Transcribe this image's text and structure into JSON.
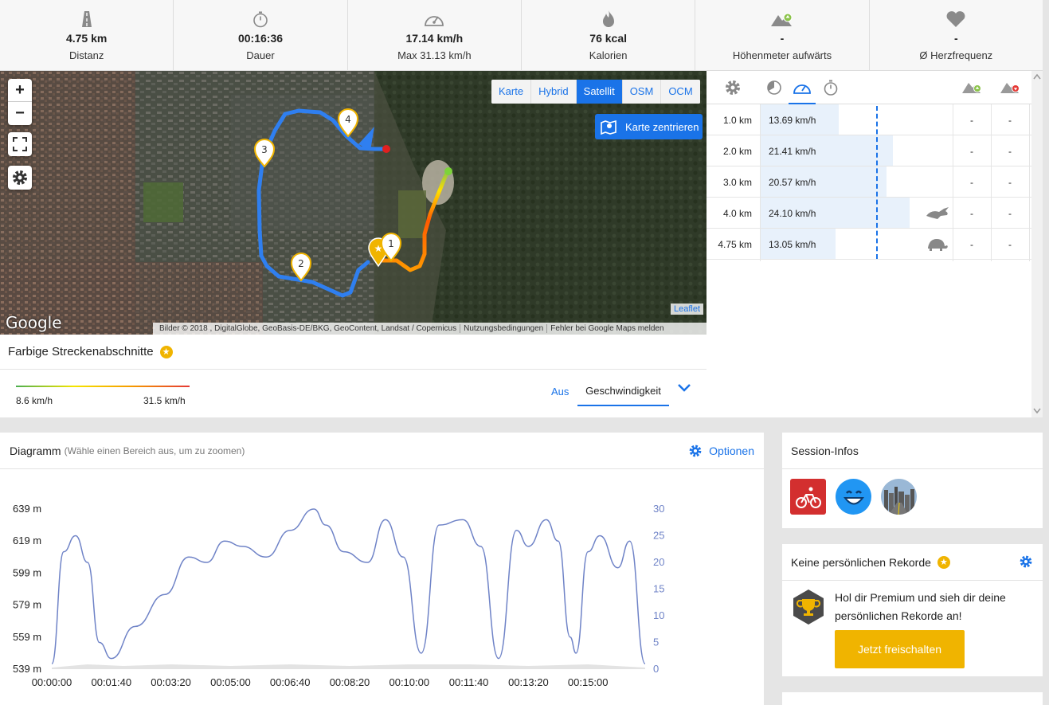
{
  "stats": [
    {
      "icon": "road-icon",
      "value": "4.75 km",
      "label": "Distanz"
    },
    {
      "icon": "stopwatch-icon",
      "value": "00:16:36",
      "label": "Dauer"
    },
    {
      "icon": "speedometer-icon",
      "value": "17.14 km/h",
      "label": "Max 31.13 km/h"
    },
    {
      "icon": "flame-icon",
      "value": "76 kcal",
      "label": "Kalorien"
    },
    {
      "icon": "mountain-up-icon",
      "value": "-",
      "label": "Höhenmeter aufwärts"
    },
    {
      "icon": "heart-icon",
      "value": "-",
      "label": "Ø Herzfrequenz"
    }
  ],
  "map": {
    "zoom_in": "+",
    "zoom_out": "−",
    "layers": [
      "Karte",
      "Hybrid",
      "Satellit",
      "OSM",
      "OCM"
    ],
    "active_layer": "Satellit",
    "center_label": "Karte zentrieren",
    "google": "Google",
    "attribution": [
      "Bilder © 2018 , DigitalGlobe, GeoBasis-DE/BKG, GeoContent, Landsat / Copernicus",
      "Nutzungsbedingungen",
      "Fehler bei Google Maps melden"
    ],
    "leaflet": "Leaflet",
    "markers": [
      "1",
      "2",
      "3",
      "4"
    ]
  },
  "sections": {
    "title": "Farbige Streckenabschnitte",
    "min": "8.6 km/h",
    "max": "31.5 km/h",
    "option_off": "Aus",
    "option_selected": "Geschwindigkeit"
  },
  "splits": [
    {
      "km": "1.0 km",
      "speed": "13.69 km/h",
      "fill": 0.41,
      "up": "-",
      "down": "-",
      "badge": ""
    },
    {
      "km": "2.0 km",
      "speed": "21.41 km/h",
      "fill": 0.69,
      "up": "-",
      "down": "-",
      "badge": ""
    },
    {
      "km": "3.0 km",
      "speed": "20.57 km/h",
      "fill": 0.66,
      "up": "-",
      "down": "-",
      "badge": ""
    },
    {
      "km": "4.0 km",
      "speed": "24.10 km/h",
      "fill": 0.78,
      "up": "-",
      "down": "-",
      "badge": "rabbit-icon"
    },
    {
      "km": "4.75 km",
      "speed": "13.05 km/h",
      "fill": 0.39,
      "up": "-",
      "down": "-",
      "badge": "turtle-icon"
    }
  ],
  "diagram": {
    "title": "Diagramm",
    "subtitle": "(Wähle einen Bereich aus, um zu zoomen)",
    "options": "Optionen"
  },
  "chart_data": {
    "type": "line",
    "title": "",
    "xlabel": "",
    "ylabel": "",
    "x_ticks": [
      "00:00:00",
      "00:01:40",
      "00:03:20",
      "00:05:00",
      "00:06:40",
      "00:08:20",
      "00:10:00",
      "00:11:40",
      "00:13:20",
      "00:15:00"
    ],
    "y_left_ticks": [
      "539 m",
      "559 m",
      "579 m",
      "599 m",
      "619 m",
      "639 m"
    ],
    "y_left_range": [
      539,
      639
    ],
    "y_right_ticks": [
      "0",
      "5",
      "10",
      "15",
      "20",
      "25",
      "30"
    ],
    "y_right_range": [
      0,
      30
    ],
    "series": [
      {
        "axis": "right",
        "x_seconds": [
          0,
          20,
          40,
          60,
          80,
          100,
          140,
          190,
          230,
          260,
          290,
          320,
          360,
          400,
          440,
          460,
          490,
          530,
          560,
          590,
          620,
          650,
          690,
          720,
          750,
          780,
          800,
          830,
          850,
          870,
          880,
          900,
          920,
          950,
          970,
          996
        ],
        "values": [
          1,
          22,
          25,
          20,
          5,
          2,
          8,
          14,
          21,
          20,
          24,
          23,
          21,
          26,
          30,
          27,
          22,
          20,
          28,
          21,
          3,
          27,
          28,
          23,
          2,
          26,
          23,
          28,
          24,
          6,
          3,
          22,
          25,
          19,
          24,
          1
        ]
      },
      {
        "axis": "left",
        "x_seconds": [
          0,
          60,
          120,
          200,
          300,
          400,
          500,
          600,
          700,
          800,
          900,
          996
        ],
        "values": [
          540,
          542,
          541,
          542,
          541,
          542,
          541,
          542,
          542,
          541,
          542,
          540
        ]
      }
    ]
  },
  "session": {
    "title": "Session-Infos",
    "icons": [
      "cycling-icon",
      "smiley-icon",
      "skyline-icon"
    ]
  },
  "records": {
    "title": "Keine persönlichen Rekorde",
    "message": "Hol dir Premium und sieh dir deine persönlichen Rekorde an!",
    "button": "Jetzt freischalten"
  },
  "colors": {
    "accent": "#1a73e8",
    "premium": "#f0b400",
    "route": "#2f7ff0",
    "chart_line": "#6f83c7"
  }
}
